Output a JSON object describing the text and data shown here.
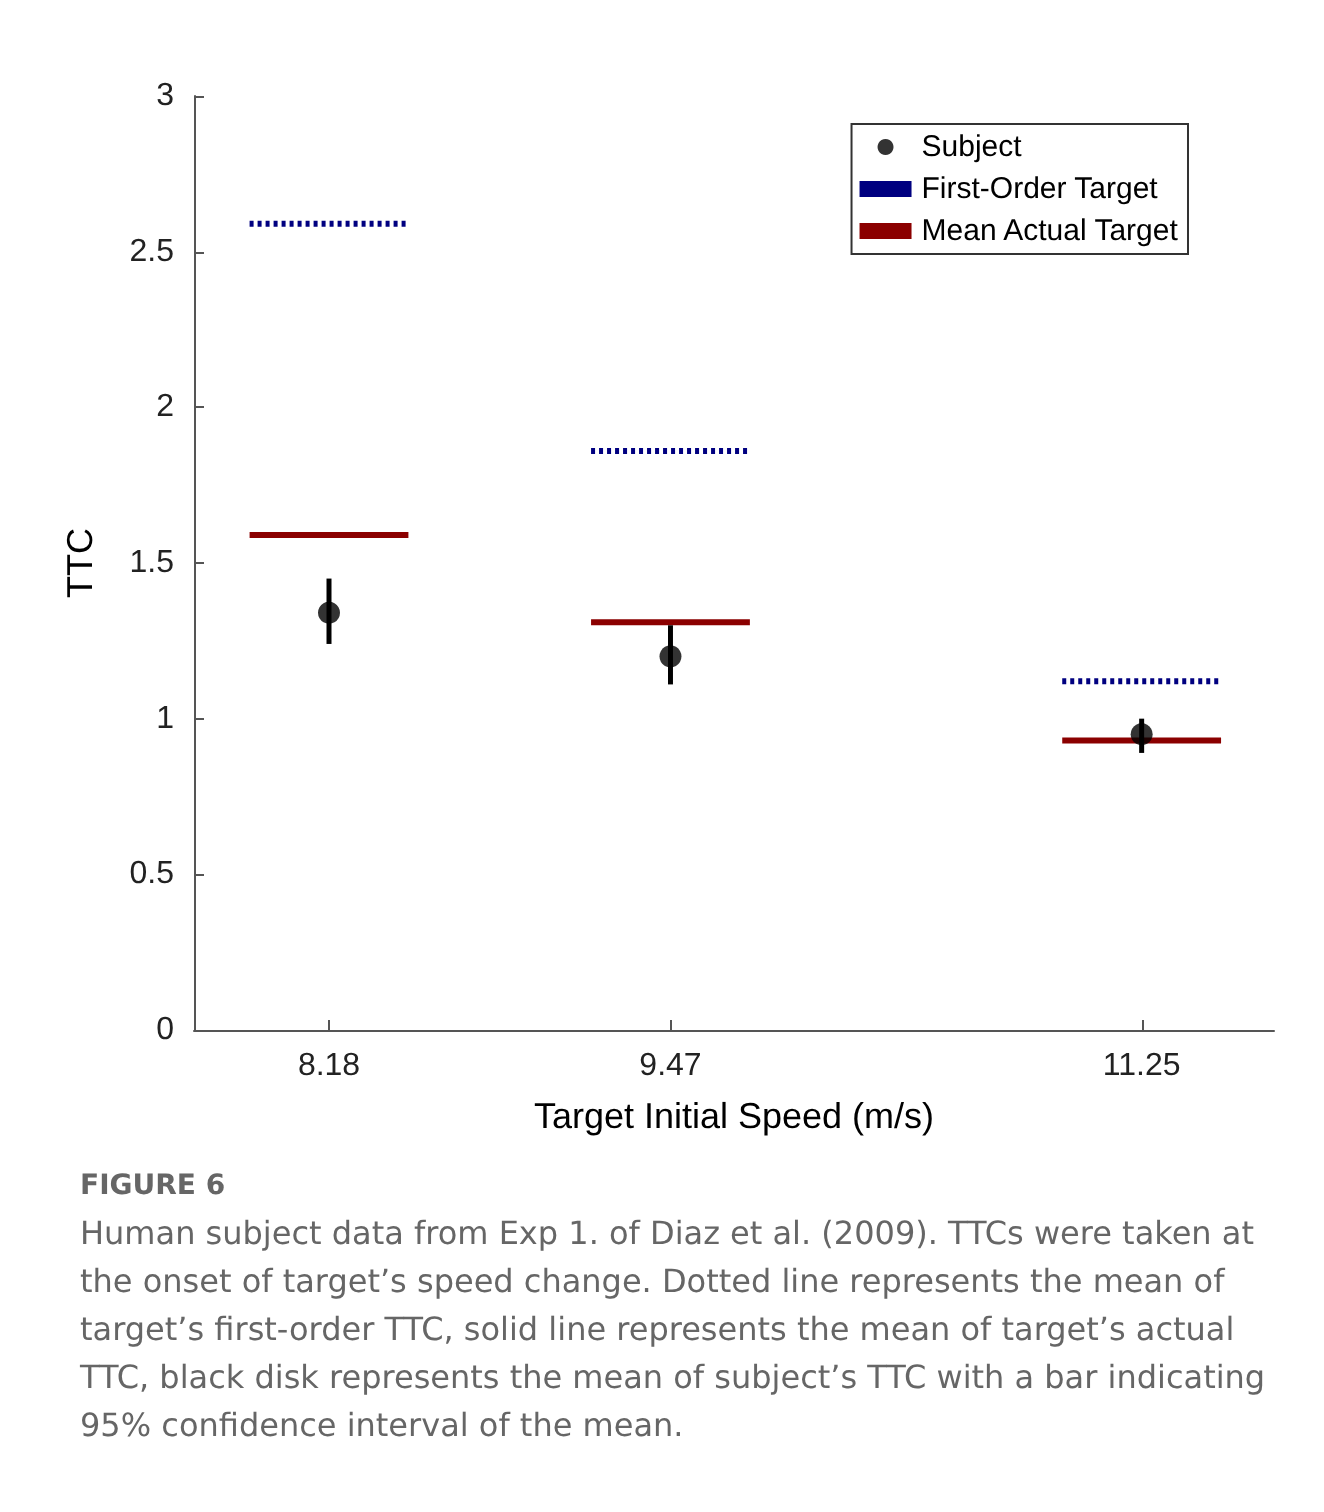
{
  "chart_data": {
    "type": "scatter",
    "xlabel": "Target Initial Speed (m/s)",
    "ylabel": "TTC",
    "annotations": [
      "FIGURE 6",
      "Human subject data from Exp 1. of Diaz et al. (2009). TTCs were taken at the onset of target’s speed change. Dotted line represents the mean of target’s first-order TTC, solid line represents the mean of target’s actual TTC, black disk represents the mean of subject’s TTC with a bar indicating 95% confidence interval of the mean."
    ],
    "xlim": [
      7.67,
      11.75
    ],
    "xticks": [
      8.18,
      9.47,
      11.25
    ],
    "ylim": [
      0,
      3
    ],
    "yticks": [
      0,
      0.5,
      1,
      1.5,
      2,
      2.5,
      3
    ],
    "grid": false,
    "legend": "top right",
    "series": [
      {
        "name": "Subject",
        "color": "#000000",
        "marker": "circle",
        "x": [
          8.18,
          9.47,
          11.25
        ],
        "values": [
          1.34,
          1.2,
          0.95
        ],
        "errors": [
          [
            1.24,
            1.45
          ],
          [
            1.11,
            1.3
          ],
          [
            0.89,
            1.0
          ]
        ]
      },
      {
        "name": "First-Order Target",
        "type": "line",
        "color": "#000080",
        "line_style": "dotted",
        "marker": "none",
        "x": [
          7.88,
          8.48,
          null,
          9.17,
          9.77,
          null,
          10.95,
          11.55
        ],
        "values": [
          2.59,
          2.59,
          null,
          1.86,
          1.86,
          null,
          1.12,
          1.12
        ]
      },
      {
        "name": "Mean Actual Target",
        "type": "line",
        "color": "#8b0000",
        "line_style": "solid",
        "marker": "none",
        "x": [
          7.88,
          8.48,
          null,
          9.17,
          9.77,
          null,
          10.95,
          11.55
        ],
        "values": [
          1.59,
          1.59,
          null,
          1.31,
          1.31,
          null,
          0.93,
          0.93
        ]
      }
    ]
  }
}
